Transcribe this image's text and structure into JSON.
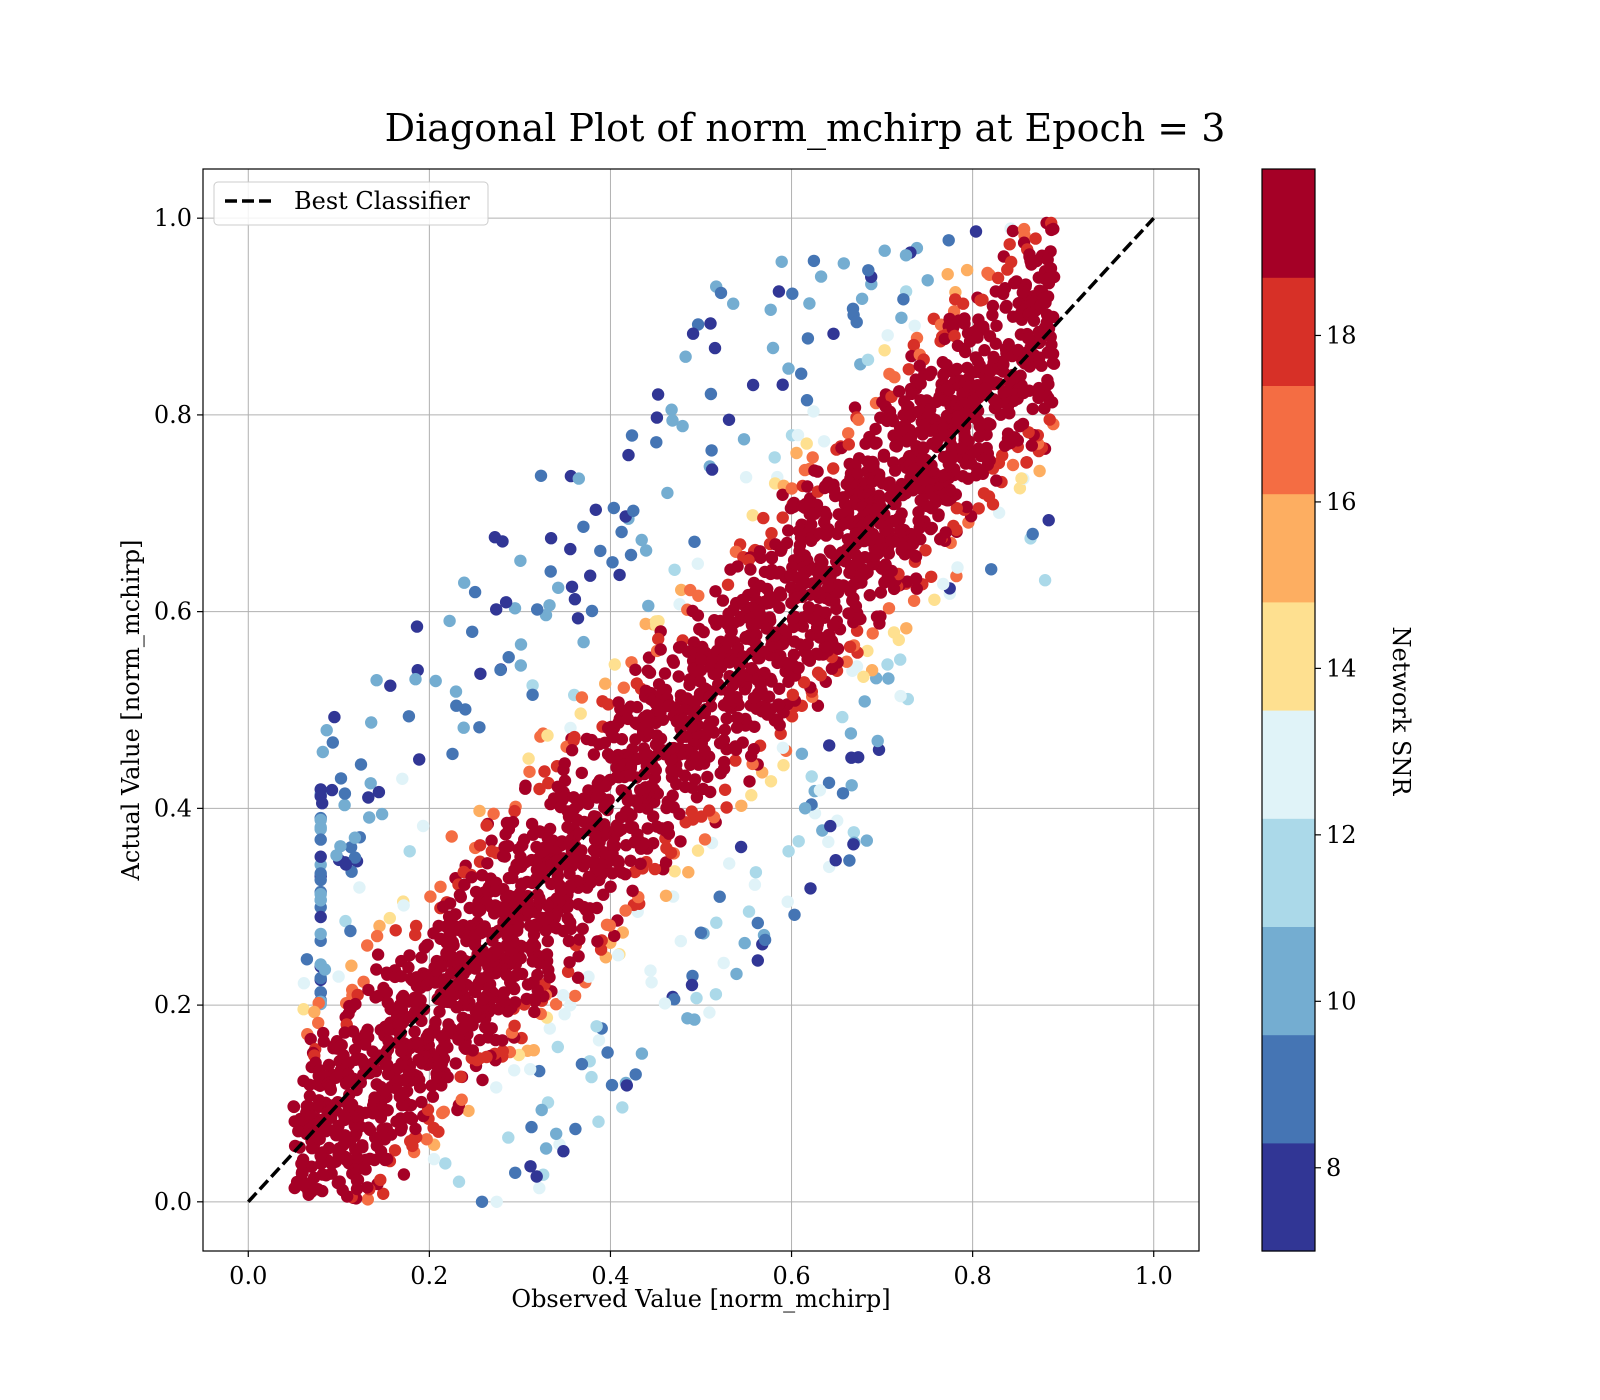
{
  "chart_data": {
    "type": "scatter",
    "title": "Diagonal Plot of norm_mchirp at Epoch = 3",
    "xlabel": "Observed Value [norm_mchirp]",
    "ylabel": "Actual Value [norm_mchirp]",
    "xlim": [
      -0.05,
      1.05
    ],
    "ylim": [
      -0.05,
      1.05
    ],
    "xticks": [
      "0.0",
      "0.2",
      "0.4",
      "0.6",
      "0.8",
      "1.0"
    ],
    "yticks": [
      "0.0",
      "0.2",
      "0.4",
      "0.6",
      "0.8",
      "1.0"
    ],
    "grid": true,
    "legend": {
      "position": "top-left",
      "entries": [
        "Best Classifier"
      ]
    },
    "reference_line": {
      "name": "Best Classifier",
      "x": [
        0.0,
        1.0
      ],
      "y": [
        0.0,
        1.0
      ],
      "style": "dashed",
      "color": "#000000"
    },
    "colorbar": {
      "label": "Network SNR",
      "range": [
        7,
        20
      ],
      "bins": [
        7,
        8,
        9,
        10,
        11,
        12,
        13,
        14,
        15,
        16,
        17,
        18,
        19,
        20
      ],
      "tick_values": [
        8,
        10,
        12,
        14,
        16,
        18
      ],
      "ticks": [
        "8",
        "10",
        "12",
        "14",
        "16",
        "18"
      ],
      "colors": [
        "#313695",
        "#4575b4",
        "#74add1",
        "#abd9e9",
        "#e0f3f8",
        "#fee090",
        "#fdae61",
        "#f46d43",
        "#d73027",
        "#a50026"
      ]
    },
    "scatter_summary": {
      "note": "dense cloud of points along the diagonal; low-SNR points lie further from it",
      "x_range": [
        0.05,
        0.89
      ],
      "y_range": [
        0.0,
        1.0
      ]
    }
  }
}
